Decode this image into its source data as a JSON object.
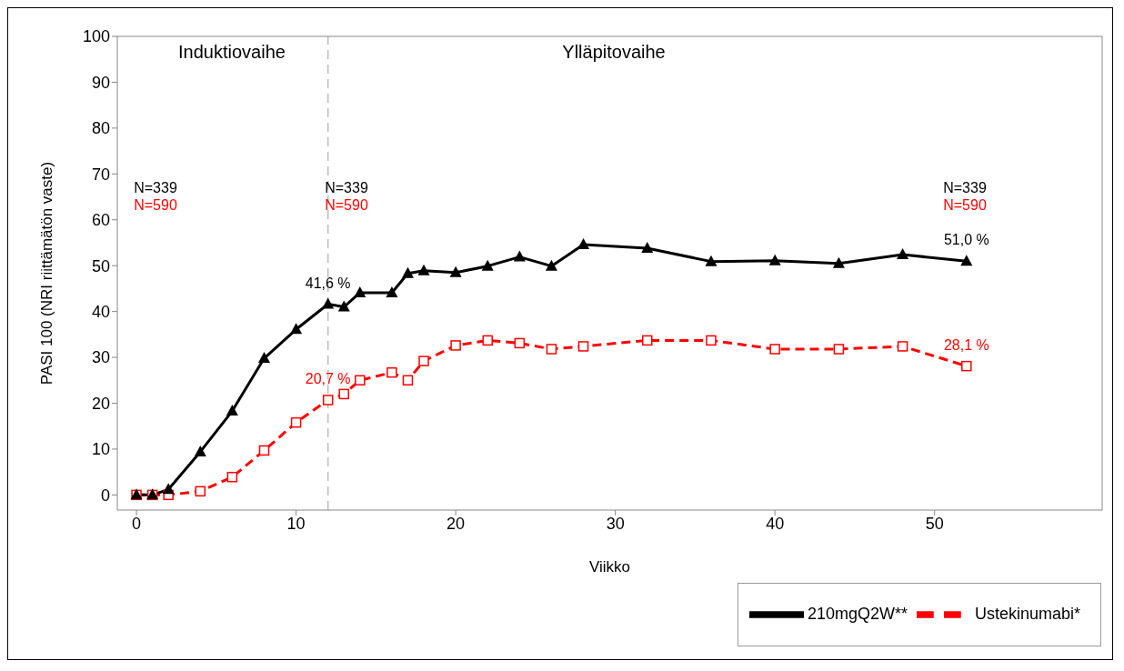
{
  "chart_data": {
    "type": "line",
    "xlabel": "Viikko",
    "ylabel": "PASI 100 (NRI riittämätön vaste)",
    "xlim": [
      -1.2,
      60.5
    ],
    "ylim": [
      -3.3,
      100
    ],
    "xticks": [
      0,
      10,
      20,
      30,
      40,
      50
    ],
    "yticks": [
      0,
      10,
      20,
      30,
      40,
      50,
      60,
      70,
      80,
      90,
      100
    ],
    "grid": false,
    "legend": "bottom right",
    "x": [
      0,
      1,
      2,
      4,
      6,
      8,
      10,
      12,
      13,
      14,
      16,
      17,
      18,
      20,
      22,
      24,
      26,
      28,
      32,
      36,
      40,
      44,
      48,
      52
    ],
    "series": [
      {
        "name": "Ustekinumabi*",
        "color": "#ff0000",
        "marker": "square",
        "line_style": "dashed",
        "values": [
          0,
          0,
          0,
          0.8,
          3.9,
          9.7,
          15.8,
          20.7,
          22.0,
          25.0,
          26.7,
          25.0,
          29.2,
          32.6,
          33.7,
          33.1,
          31.8,
          32.4,
          33.7,
          33.7,
          31.8,
          31.8,
          32.4,
          28.1
        ],
        "value_labels": [
          null,
          null,
          null,
          null,
          null,
          null,
          null,
          "20,7 %",
          null,
          null,
          null,
          null,
          null,
          null,
          null,
          null,
          null,
          null,
          null,
          null,
          null,
          null,
          null,
          "28,1 %"
        ]
      },
      {
        "name": "210mgQ2W**",
        "color": "#000000",
        "marker": "triangle",
        "line_style": "solid",
        "values": [
          0,
          0,
          1.2,
          9.4,
          18.3,
          29.8,
          36.1,
          41.6,
          41.0,
          44.1,
          44.1,
          48.3,
          48.9,
          48.5,
          49.9,
          51.9,
          49.9,
          54.6,
          53.8,
          50.9,
          51.1,
          50.5,
          52.4,
          51.0
        ],
        "value_labels": [
          null,
          null,
          null,
          null,
          null,
          null,
          null,
          "41,6 %",
          null,
          null,
          null,
          null,
          null,
          null,
          null,
          null,
          null,
          null,
          null,
          null,
          null,
          null,
          null,
          "51,0 %"
        ]
      }
    ],
    "ref_lines": [
      {
        "axis": "x",
        "value": 12,
        "color": "#bbbbbb",
        "line_style": "dashed"
      }
    ],
    "annotations": [
      "Induktiovaihe",
      "Ylläpitovaihe",
      "N=339",
      "N=590",
      "N=339",
      "N=590",
      "N=339",
      "N=590"
    ]
  }
}
